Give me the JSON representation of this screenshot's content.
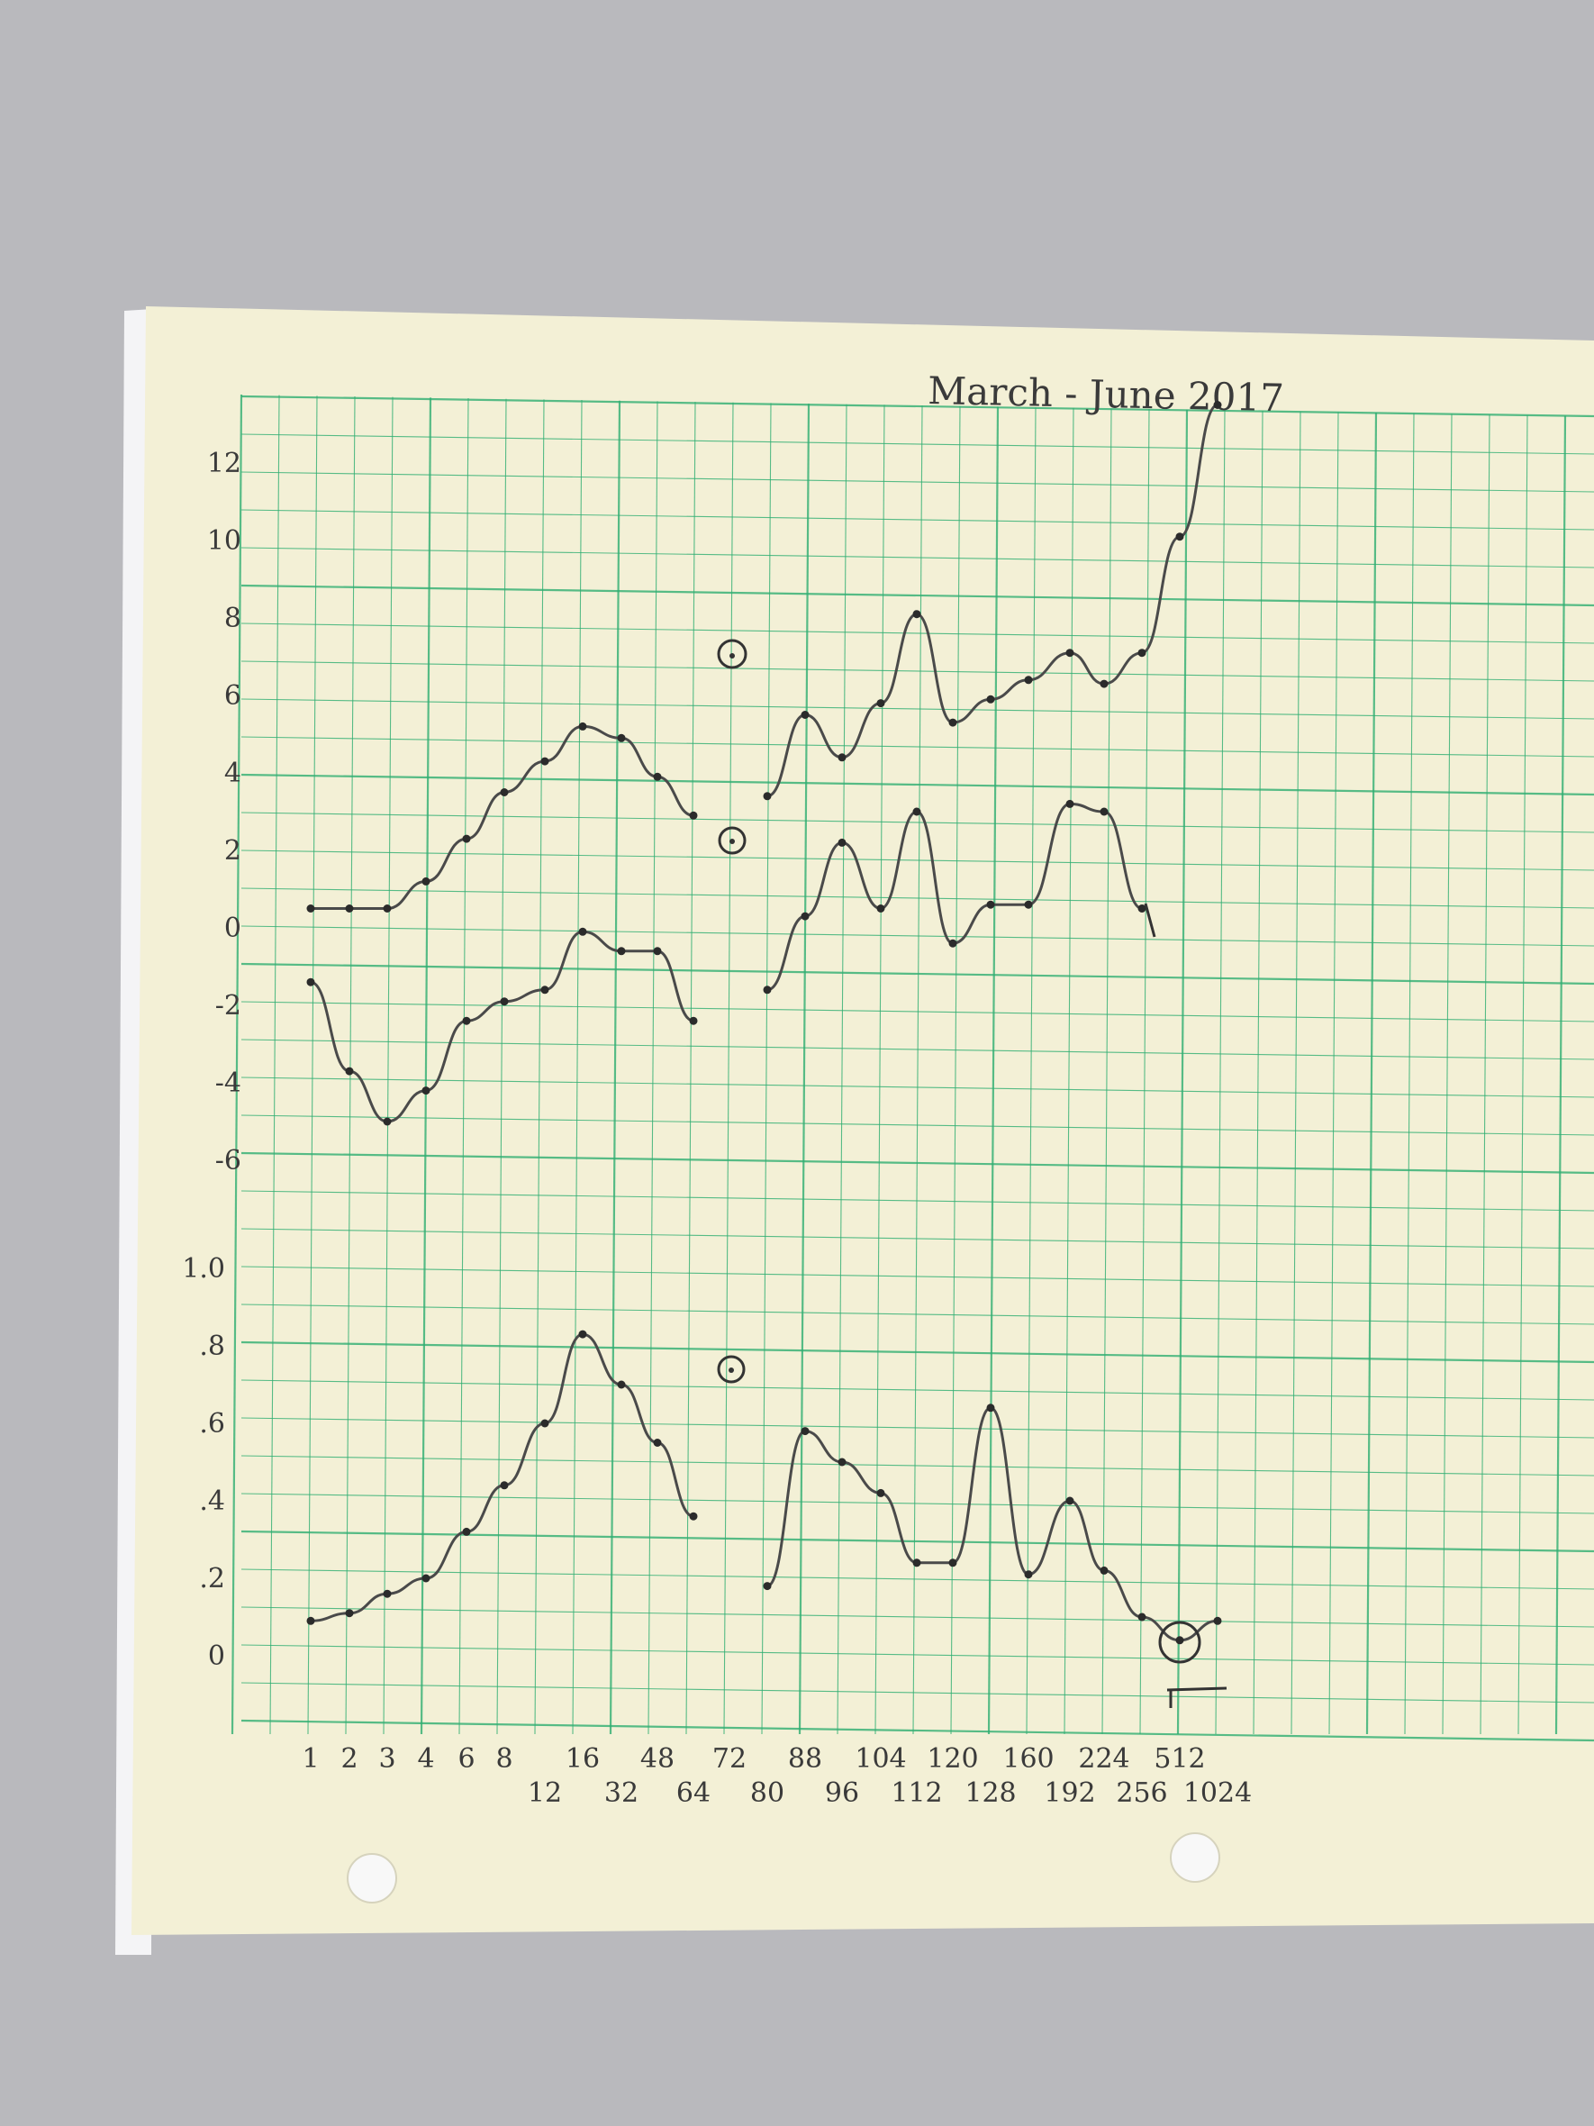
{
  "title": "March - June 2017",
  "colors": {
    "background": "#b9b9bd",
    "paper": "#f3f0d6",
    "grid": "#2fae72",
    "ink": "#3a3a3a"
  },
  "chart_data": [
    {
      "type": "line",
      "title": "March - June 2017",
      "yticks": [
        "12",
        "10",
        "8",
        "6",
        "4",
        "2",
        "0",
        "-2",
        "-4",
        "-6"
      ],
      "ylim": [
        -6,
        13
      ],
      "grid": true,
      "series": [
        {
          "segments": [
            [
              [
                1,
                0.5
              ],
              [
                2,
                0.5
              ],
              [
                3,
                0.5
              ],
              [
                4,
                1.2
              ],
              [
                6,
                2.3
              ],
              [
                8,
                3.5
              ],
              [
                12,
                4.3
              ],
              [
                16,
                5.2
              ],
              [
                32,
                4.9
              ],
              [
                48,
                3.9
              ],
              [
                64,
                2.9
              ]
            ],
            [
              [
                80,
                3.4
              ],
              [
                88,
                5.5
              ],
              [
                96,
                4.4
              ],
              [
                104,
                5.8
              ],
              [
                112,
                8.1
              ],
              [
                120,
                5.3
              ],
              [
                128,
                5.9
              ],
              [
                160,
                6.4
              ],
              [
                192,
                7.1
              ],
              [
                224,
                6.3
              ],
              [
                256,
                7.1
              ],
              [
                512,
                10.1
              ],
              [
                1024,
                13.5
              ]
            ]
          ]
        },
        {
          "segments": [
            [
              [
                1,
                -1.4
              ],
              [
                2,
                -3.7
              ],
              [
                3,
                -5.0
              ],
              [
                4,
                -4.2
              ],
              [
                6,
                -2.4
              ],
              [
                8,
                -1.9
              ],
              [
                12,
                -1.6
              ],
              [
                16,
                -0.1
              ],
              [
                32,
                -0.6
              ],
              [
                48,
                -0.6
              ],
              [
                64,
                -2.4
              ]
            ],
            [
              [
                80,
                -1.6
              ],
              [
                88,
                0.3
              ],
              [
                96,
                2.2
              ],
              [
                104,
                0.5
              ],
              [
                112,
                3.0
              ],
              [
                120,
                -0.4
              ],
              [
                128,
                0.6
              ],
              [
                160,
                0.6
              ],
              [
                192,
                3.2
              ],
              [
                224,
                3.0
              ],
              [
                256,
                0.5
              ]
            ]
          ]
        }
      ]
    },
    {
      "type": "line",
      "yticks": [
        "1.0",
        ".8",
        ".6",
        ".4",
        ".2",
        "0"
      ],
      "ylim": [
        0,
        1.0
      ],
      "grid": true,
      "xticks_row1": [
        "1",
        "2",
        "3",
        "4",
        "6",
        "8",
        "16",
        "48",
        "72",
        "88",
        "104",
        "120",
        "160",
        "224",
        "512"
      ],
      "xticks_row2": [
        "12",
        "32",
        "64",
        "80",
        "96",
        "112",
        "128",
        "192",
        "256",
        "1024"
      ],
      "series": [
        {
          "segments": [
            [
              [
                1,
                0.09
              ],
              [
                2,
                0.11
              ],
              [
                3,
                0.16
              ],
              [
                4,
                0.2
              ],
              [
                6,
                0.32
              ],
              [
                8,
                0.44
              ],
              [
                12,
                0.6
              ],
              [
                16,
                0.83
              ],
              [
                32,
                0.7
              ],
              [
                48,
                0.55
              ],
              [
                64,
                0.36
              ]
            ],
            [
              [
                80,
                0.18
              ],
              [
                88,
                0.58
              ],
              [
                96,
                0.5
              ],
              [
                104,
                0.42
              ],
              [
                112,
                0.24
              ],
              [
                120,
                0.24
              ],
              [
                128,
                0.64
              ],
              [
                160,
                0.21
              ],
              [
                192,
                0.4
              ],
              [
                224,
                0.22
              ],
              [
                256,
                0.1
              ],
              [
                512,
                0.04
              ],
              [
                1024,
                0.09
              ]
            ]
          ]
        }
      ]
    }
  ]
}
